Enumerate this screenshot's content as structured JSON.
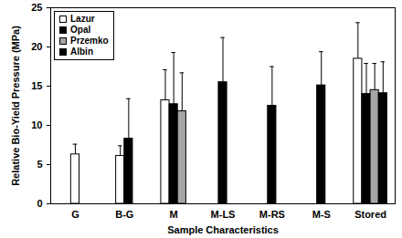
{
  "chart_data": {
    "type": "bar",
    "x_label": "Sample Characteristics",
    "y_label": "Relative Bio-Yield Pressure (MPa)",
    "categories": [
      "G",
      "B-G",
      "M",
      "M-LS",
      "M-RS",
      "M-S",
      "Stored"
    ],
    "series": [
      {
        "name": "Lazur",
        "color": "#ffffff",
        "values": [
          6.3,
          6.1,
          13.2,
          null,
          null,
          null,
          18.5
        ],
        "errors": [
          1.3,
          1.3,
          3.9,
          null,
          null,
          null,
          4.6
        ]
      },
      {
        "name": "Opal",
        "color": "#000000",
        "values": [
          null,
          8.3,
          12.7,
          15.5,
          12.5,
          15.1,
          14.0
        ],
        "errors": [
          null,
          5.1,
          6.6,
          5.7,
          5.0,
          4.3,
          3.9
        ]
      },
      {
        "name": "Przemko",
        "color": "#a6a6a6",
        "values": [
          null,
          null,
          11.8,
          null,
          null,
          null,
          14.5
        ],
        "errors": [
          null,
          null,
          4.9,
          null,
          null,
          null,
          3.4
        ]
      },
      {
        "name": "Albin",
        "color": "#000000",
        "values": [
          null,
          null,
          null,
          null,
          null,
          null,
          14.1
        ],
        "errors": [
          null,
          null,
          null,
          null,
          null,
          null,
          4.0
        ]
      }
    ],
    "ylim": [
      0,
      25
    ],
    "yticks": [
      0,
      5,
      10,
      15,
      20,
      25
    ],
    "grid": false,
    "legend": "top-left"
  }
}
